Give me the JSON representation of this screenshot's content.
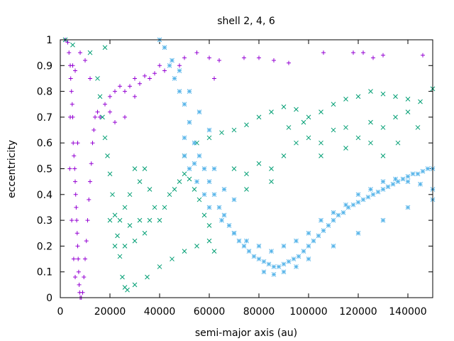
{
  "chart_data": {
    "type": "scatter",
    "title": "shell 2, 4, 6",
    "xlabel": "semi-major axis (au)",
    "ylabel": "eccentricity",
    "xlim": [
      0,
      150000
    ],
    "ylim": [
      0,
      1
    ],
    "x_ticks": [
      0,
      20000,
      40000,
      60000,
      80000,
      100000,
      120000,
      140000
    ],
    "y_ticks": [
      0,
      0.1,
      0.2,
      0.3,
      0.4,
      0.5,
      0.6,
      0.7,
      0.8,
      0.9,
      1
    ],
    "x_tick_labels": [
      "0",
      "20000",
      "40000",
      "60000",
      "80000",
      "100000",
      "120000",
      "140000"
    ],
    "y_tick_labels": [
      "0",
      "0.1",
      "0.2",
      "0.3",
      "0.4",
      "0.5",
      "0.6",
      "0.7",
      "0.8",
      "0.9",
      "1"
    ],
    "grid": false,
    "legend": "none",
    "series": [
      {
        "marker": "plus",
        "color": "#9400d3",
        "points": [
          [
            2000,
            1.0
          ],
          [
            3000,
            0.99
          ],
          [
            3500,
            0.95
          ],
          [
            4000,
            0.9
          ],
          [
            4200,
            0.85
          ],
          [
            4500,
            0.8
          ],
          [
            4800,
            0.75
          ],
          [
            5000,
            0.7
          ],
          [
            5200,
            0.6
          ],
          [
            5500,
            0.55
          ],
          [
            5800,
            0.5
          ],
          [
            6000,
            0.45
          ],
          [
            6200,
            0.4
          ],
          [
            6400,
            0.35
          ],
          [
            6600,
            0.3
          ],
          [
            6800,
            0.25
          ],
          [
            7000,
            0.2
          ],
          [
            7200,
            0.15
          ],
          [
            7400,
            0.1
          ],
          [
            7600,
            0.05
          ],
          [
            7800,
            0.02
          ],
          [
            8000,
            0.0
          ],
          [
            8500,
            0.0
          ],
          [
            9000,
            0.02
          ],
          [
            9500,
            0.08
          ],
          [
            10000,
            0.15
          ],
          [
            10500,
            0.22
          ],
          [
            11000,
            0.3
          ],
          [
            11500,
            0.38
          ],
          [
            12000,
            0.45
          ],
          [
            12500,
            0.52
          ],
          [
            13000,
            0.6
          ],
          [
            13500,
            0.65
          ],
          [
            14000,
            0.7
          ],
          [
            15000,
            0.72
          ],
          [
            16000,
            0.7
          ],
          [
            18000,
            0.75
          ],
          [
            20000,
            0.78
          ],
          [
            22000,
            0.8
          ],
          [
            24000,
            0.82
          ],
          [
            26000,
            0.8
          ],
          [
            28000,
            0.82
          ],
          [
            30000,
            0.85
          ],
          [
            32000,
            0.83
          ],
          [
            34000,
            0.86
          ],
          [
            36000,
            0.85
          ],
          [
            30000,
            0.78
          ],
          [
            26000,
            0.7
          ],
          [
            22000,
            0.68
          ],
          [
            20000,
            0.72
          ],
          [
            5000,
            0.9
          ],
          [
            6000,
            0.88
          ],
          [
            8000,
            0.95
          ],
          [
            10000,
            0.92
          ],
          [
            12000,
            0.85
          ],
          [
            40000,
            0.9
          ],
          [
            45000,
            0.92
          ],
          [
            50000,
            0.93
          ],
          [
            55000,
            0.95
          ],
          [
            60000,
            0.93
          ],
          [
            64000,
            0.92
          ],
          [
            74000,
            0.93
          ],
          [
            80000,
            0.93
          ],
          [
            86000,
            0.92
          ],
          [
            92000,
            0.91
          ],
          [
            106000,
            0.95
          ],
          [
            118000,
            0.95
          ],
          [
            122000,
            0.95
          ],
          [
            126000,
            0.93
          ],
          [
            130000,
            0.94
          ],
          [
            146000,
            0.94
          ],
          [
            62000,
            0.85
          ],
          [
            42000,
            0.88
          ],
          [
            48000,
            0.9
          ],
          [
            38000,
            0.87
          ],
          [
            7000,
            0.6
          ],
          [
            4000,
            0.7
          ],
          [
            3800,
            0.5
          ],
          [
            4600,
            0.3
          ],
          [
            5400,
            0.15
          ],
          [
            6000,
            0.08
          ]
        ]
      },
      {
        "marker": "cross",
        "color": "#009e73",
        "points": [
          [
            2000,
            1.0
          ],
          [
            5000,
            0.98
          ],
          [
            12000,
            0.95
          ],
          [
            18000,
            0.97
          ],
          [
            15000,
            0.85
          ],
          [
            16000,
            0.78
          ],
          [
            17000,
            0.7
          ],
          [
            18000,
            0.62
          ],
          [
            19000,
            0.55
          ],
          [
            20000,
            0.48
          ],
          [
            21000,
            0.4
          ],
          [
            22000,
            0.32
          ],
          [
            23000,
            0.24
          ],
          [
            24000,
            0.16
          ],
          [
            25000,
            0.08
          ],
          [
            26000,
            0.04
          ],
          [
            27000,
            0.03
          ],
          [
            30000,
            0.05
          ],
          [
            35000,
            0.08
          ],
          [
            40000,
            0.12
          ],
          [
            45000,
            0.15
          ],
          [
            50000,
            0.18
          ],
          [
            55000,
            0.2
          ],
          [
            60000,
            0.22
          ],
          [
            62000,
            0.18
          ],
          [
            26000,
            0.2
          ],
          [
            28000,
            0.28
          ],
          [
            30000,
            0.22
          ],
          [
            32000,
            0.3
          ],
          [
            34000,
            0.25
          ],
          [
            36000,
            0.3
          ],
          [
            38000,
            0.35
          ],
          [
            40000,
            0.3
          ],
          [
            42000,
            0.35
          ],
          [
            44000,
            0.4
          ],
          [
            46000,
            0.42
          ],
          [
            48000,
            0.45
          ],
          [
            50000,
            0.48
          ],
          [
            52000,
            0.46
          ],
          [
            54000,
            0.42
          ],
          [
            56000,
            0.38
          ],
          [
            58000,
            0.32
          ],
          [
            60000,
            0.28
          ],
          [
            20000,
            0.3
          ],
          [
            22000,
            0.2
          ],
          [
            24000,
            0.3
          ],
          [
            26000,
            0.35
          ],
          [
            28000,
            0.4
          ],
          [
            30000,
            0.5
          ],
          [
            32000,
            0.45
          ],
          [
            34000,
            0.5
          ],
          [
            36000,
            0.42
          ],
          [
            50000,
            0.55
          ],
          [
            55000,
            0.6
          ],
          [
            60000,
            0.62
          ],
          [
            65000,
            0.64
          ],
          [
            70000,
            0.65
          ],
          [
            75000,
            0.67
          ],
          [
            80000,
            0.7
          ],
          [
            85000,
            0.72
          ],
          [
            90000,
            0.74
          ],
          [
            95000,
            0.73
          ],
          [
            100000,
            0.7
          ],
          [
            105000,
            0.72
          ],
          [
            110000,
            0.75
          ],
          [
            115000,
            0.77
          ],
          [
            120000,
            0.78
          ],
          [
            125000,
            0.8
          ],
          [
            130000,
            0.79
          ],
          [
            135000,
            0.78
          ],
          [
            140000,
            0.77
          ],
          [
            145000,
            0.76
          ],
          [
            150000,
            0.81
          ],
          [
            70000,
            0.5
          ],
          [
            75000,
            0.48
          ],
          [
            80000,
            0.52
          ],
          [
            85000,
            0.5
          ],
          [
            90000,
            0.55
          ],
          [
            95000,
            0.6
          ],
          [
            100000,
            0.62
          ],
          [
            105000,
            0.6
          ],
          [
            110000,
            0.65
          ],
          [
            115000,
            0.66
          ],
          [
            120000,
            0.62
          ],
          [
            125000,
            0.68
          ],
          [
            130000,
            0.66
          ],
          [
            135000,
            0.7
          ],
          [
            140000,
            0.72
          ],
          [
            75000,
            0.42
          ],
          [
            85000,
            0.45
          ],
          [
            105000,
            0.55
          ],
          [
            115000,
            0.58
          ],
          [
            125000,
            0.6
          ],
          [
            130000,
            0.55
          ],
          [
            136000,
            0.6
          ],
          [
            144000,
            0.66
          ],
          [
            92000,
            0.66
          ],
          [
            98000,
            0.68
          ]
        ]
      },
      {
        "marker": "star",
        "color": "#56b4e9",
        "points": [
          [
            40000,
            1.0
          ],
          [
            42000,
            0.97
          ],
          [
            44000,
            0.9
          ],
          [
            46000,
            0.85
          ],
          [
            48000,
            0.8
          ],
          [
            50000,
            0.75
          ],
          [
            52000,
            0.68
          ],
          [
            54000,
            0.6
          ],
          [
            56000,
            0.55
          ],
          [
            58000,
            0.5
          ],
          [
            60000,
            0.45
          ],
          [
            62000,
            0.4
          ],
          [
            64000,
            0.35
          ],
          [
            66000,
            0.32
          ],
          [
            68000,
            0.28
          ],
          [
            70000,
            0.25
          ],
          [
            72000,
            0.22
          ],
          [
            74000,
            0.2
          ],
          [
            76000,
            0.18
          ],
          [
            78000,
            0.16
          ],
          [
            80000,
            0.15
          ],
          [
            82000,
            0.14
          ],
          [
            84000,
            0.13
          ],
          [
            86000,
            0.12
          ],
          [
            88000,
            0.12
          ],
          [
            90000,
            0.13
          ],
          [
            92000,
            0.14
          ],
          [
            94000,
            0.15
          ],
          [
            96000,
            0.16
          ],
          [
            98000,
            0.18
          ],
          [
            100000,
            0.2
          ],
          [
            102000,
            0.22
          ],
          [
            104000,
            0.24
          ],
          [
            106000,
            0.26
          ],
          [
            108000,
            0.28
          ],
          [
            110000,
            0.3
          ],
          [
            112000,
            0.32
          ],
          [
            114000,
            0.33
          ],
          [
            116000,
            0.35
          ],
          [
            118000,
            0.36
          ],
          [
            120000,
            0.37
          ],
          [
            122000,
            0.38
          ],
          [
            124000,
            0.39
          ],
          [
            126000,
            0.4
          ],
          [
            128000,
            0.41
          ],
          [
            130000,
            0.42
          ],
          [
            132000,
            0.43
          ],
          [
            134000,
            0.44
          ],
          [
            136000,
            0.45
          ],
          [
            138000,
            0.46
          ],
          [
            140000,
            0.47
          ],
          [
            142000,
            0.48
          ],
          [
            144000,
            0.48
          ],
          [
            146000,
            0.49
          ],
          [
            148000,
            0.5
          ],
          [
            150000,
            0.5
          ],
          [
            50000,
            0.55
          ],
          [
            52000,
            0.5
          ],
          [
            55000,
            0.45
          ],
          [
            58000,
            0.4
          ],
          [
            60000,
            0.35
          ],
          [
            65000,
            0.3
          ],
          [
            70000,
            0.25
          ],
          [
            75000,
            0.22
          ],
          [
            80000,
            0.2
          ],
          [
            85000,
            0.18
          ],
          [
            90000,
            0.2
          ],
          [
            95000,
            0.22
          ],
          [
            100000,
            0.25
          ],
          [
            105000,
            0.3
          ],
          [
            110000,
            0.33
          ],
          [
            115000,
            0.36
          ],
          [
            120000,
            0.4
          ],
          [
            125000,
            0.42
          ],
          [
            130000,
            0.45
          ],
          [
            135000,
            0.46
          ],
          [
            140000,
            0.45
          ],
          [
            145000,
            0.44
          ],
          [
            150000,
            0.42
          ],
          [
            82000,
            0.1
          ],
          [
            86000,
            0.09
          ],
          [
            90000,
            0.1
          ],
          [
            95000,
            0.12
          ],
          [
            100000,
            0.15
          ],
          [
            110000,
            0.2
          ],
          [
            120000,
            0.25
          ],
          [
            130000,
            0.3
          ],
          [
            140000,
            0.35
          ],
          [
            150000,
            0.38
          ],
          [
            45000,
            0.92
          ],
          [
            48000,
            0.88
          ],
          [
            52000,
            0.8
          ],
          [
            56000,
            0.72
          ],
          [
            60000,
            0.65
          ],
          [
            50000,
            0.62
          ],
          [
            54000,
            0.52
          ],
          [
            62000,
            0.5
          ],
          [
            66000,
            0.42
          ],
          [
            70000,
            0.38
          ]
        ]
      }
    ]
  }
}
